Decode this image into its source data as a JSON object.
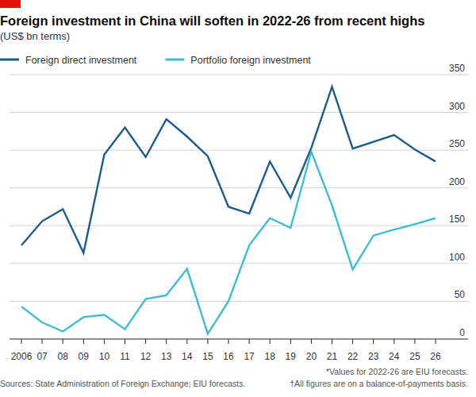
{
  "chart_data": {
    "type": "line",
    "title": "Foreign investment in China will soften in 2022-26 from recent highs",
    "subtitle": "(US$ bn terms)",
    "categories": [
      "2006",
      "07",
      "08",
      "09",
      "10",
      "11",
      "12",
      "13",
      "14",
      "15",
      "16",
      "17",
      "18",
      "19",
      "20",
      "21",
      "22",
      "23",
      "24",
      "25",
      "26"
    ],
    "series": [
      {
        "name": "Foreign direct investment",
        "color": "#1c5c8c",
        "values": [
          124,
          156,
          172,
          114,
          244,
          280,
          241,
          291,
          268,
          242,
          175,
          166,
          235,
          187,
          253,
          334,
          252,
          261,
          270,
          251,
          235
        ]
      },
      {
        "name": "Portfolio foreign investment",
        "color": "#3fbcd3",
        "values": [
          43,
          22,
          10,
          29,
          32,
          13,
          53,
          58,
          93,
          7,
          50,
          124,
          160,
          147,
          248,
          177,
          92,
          137,
          145,
          152,
          160
        ]
      }
    ],
    "ylim": [
      0,
      350
    ],
    "yticks": [
      0,
      50,
      100,
      150,
      200,
      250,
      300,
      350
    ],
    "grid": true,
    "legend": "top-left",
    "source": "Sources: State Administration of Foreign Exchange; EIU forecasts.",
    "notes": [
      "*Values for 2022-26 are EIU forecasts.",
      "†All figures are on a balance-of-payments basis."
    ]
  }
}
